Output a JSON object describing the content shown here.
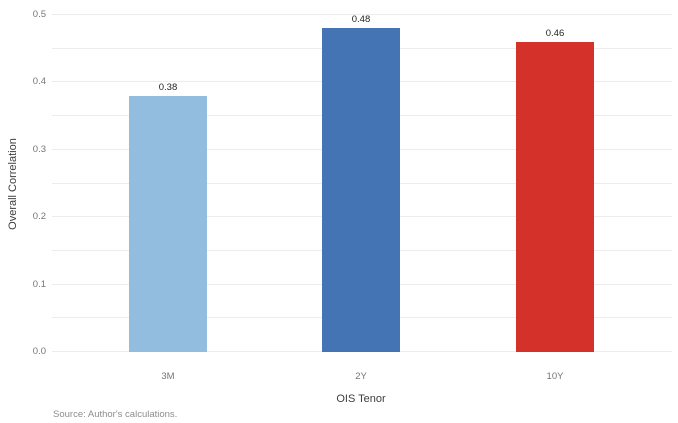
{
  "chart_data": {
    "type": "bar",
    "categories": [
      "3M",
      "2Y",
      "10Y"
    ],
    "values": [
      0.38,
      0.48,
      0.46
    ],
    "value_labels": [
      "0.38",
      "0.48",
      "0.46"
    ],
    "bar_colors": [
      "#92bdde",
      "#4574b4",
      "#d5312b"
    ],
    "title": "",
    "xlabel": "OIS Tenor",
    "ylabel": "Overall Correlation",
    "ylim": [
      0.0,
      0.5
    ],
    "ytick_step": 0.1,
    "grid_step": 0.05,
    "grid": true,
    "legend": false
  },
  "footer": {
    "source_note": "Source: Author's calculations."
  },
  "colors": {
    "background": "#ffffff",
    "gridline": "#ececec",
    "tick_label": "#757575",
    "axis_title": "#3d3d3d",
    "value_label": "#1f1f1f"
  }
}
